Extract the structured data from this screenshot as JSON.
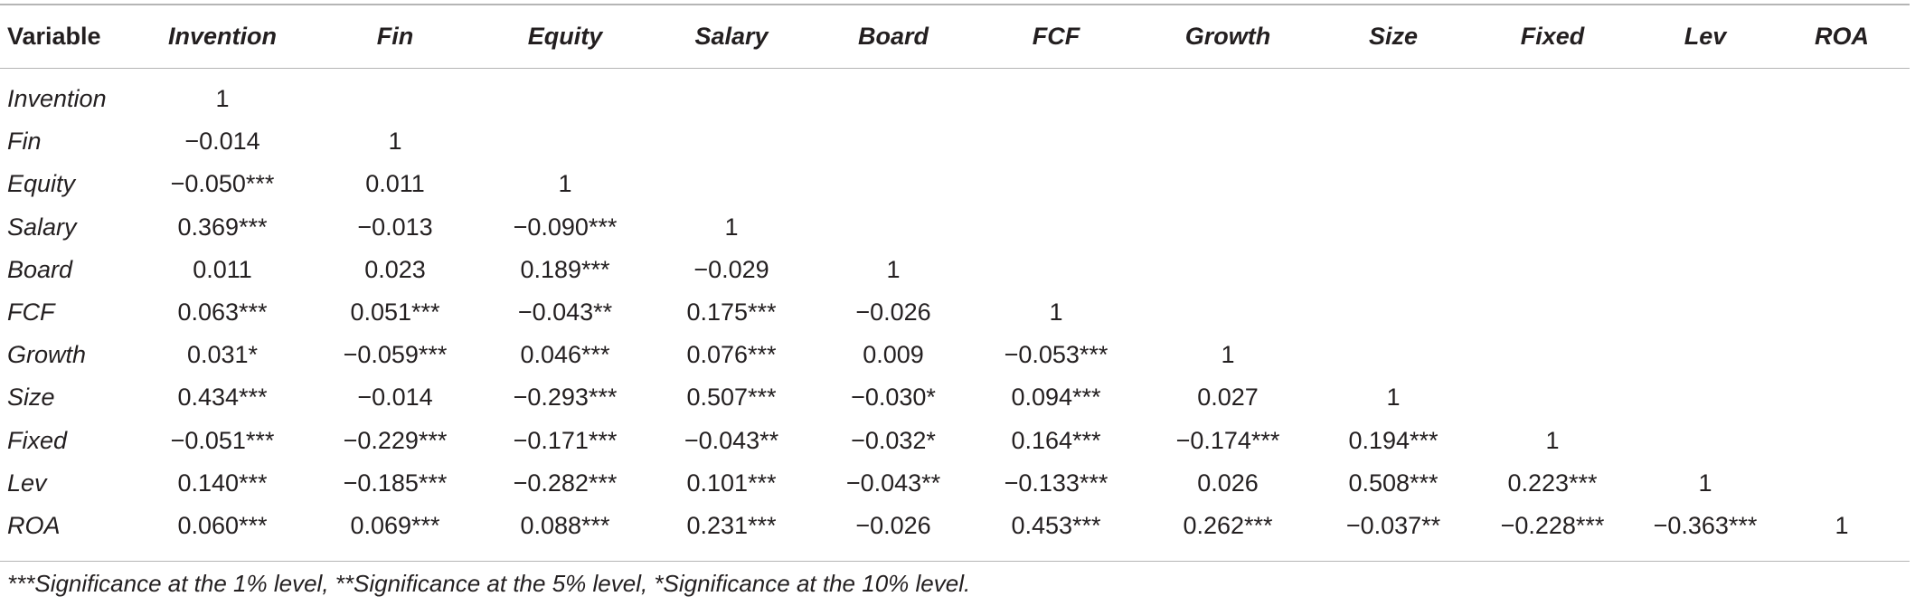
{
  "table": {
    "headers": [
      "Variable",
      "Invention",
      "Fin",
      "Equity",
      "Salary",
      "Board",
      "FCF",
      "Growth",
      "Size",
      "Fixed",
      "Lev",
      "ROA"
    ],
    "rows": [
      [
        "Invention",
        "1",
        "",
        "",
        "",
        "",
        "",
        "",
        "",
        "",
        "",
        ""
      ],
      [
        "Fin",
        "−0.014",
        "1",
        "",
        "",
        "",
        "",
        "",
        "",
        "",
        "",
        ""
      ],
      [
        "Equity",
        "−0.050***",
        "0.011",
        "1",
        "",
        "",
        "",
        "",
        "",
        "",
        "",
        ""
      ],
      [
        "Salary",
        "0.369***",
        "−0.013",
        "−0.090***",
        "1",
        "",
        "",
        "",
        "",
        "",
        "",
        ""
      ],
      [
        "Board",
        "0.011",
        "0.023",
        "0.189***",
        "−0.029",
        "1",
        "",
        "",
        "",
        "",
        "",
        ""
      ],
      [
        "FCF",
        "0.063***",
        "0.051***",
        "−0.043**",
        "0.175***",
        "−0.026",
        "1",
        "",
        "",
        "",
        "",
        ""
      ],
      [
        "Growth",
        "0.031*",
        "−0.059***",
        "0.046***",
        "0.076***",
        "0.009",
        "−0.053***",
        "1",
        "",
        "",
        "",
        ""
      ],
      [
        "Size",
        "0.434***",
        "−0.014",
        "−0.293***",
        "0.507***",
        "−0.030*",
        "0.094***",
        "0.027",
        "1",
        "",
        "",
        ""
      ],
      [
        "Fixed",
        "−0.051***",
        "−0.229***",
        "−0.171***",
        "−0.043**",
        "−0.032*",
        "0.164***",
        "−0.174***",
        "0.194***",
        "1",
        "",
        ""
      ],
      [
        "Lev",
        "0.140***",
        "−0.185***",
        "−0.282***",
        "0.101***",
        "−0.043**",
        "−0.133***",
        "0.026",
        "0.508***",
        "0.223***",
        "1",
        ""
      ],
      [
        "ROA",
        "0.060***",
        "0.069***",
        "0.088***",
        "0.231***",
        "−0.026",
        "0.453***",
        "0.262***",
        "−0.037**",
        "−0.228***",
        "−0.363***",
        "1"
      ]
    ],
    "footnote": "***Significance at the 1% level, **Significance at the 5% level, *Significance at the 10% level."
  }
}
